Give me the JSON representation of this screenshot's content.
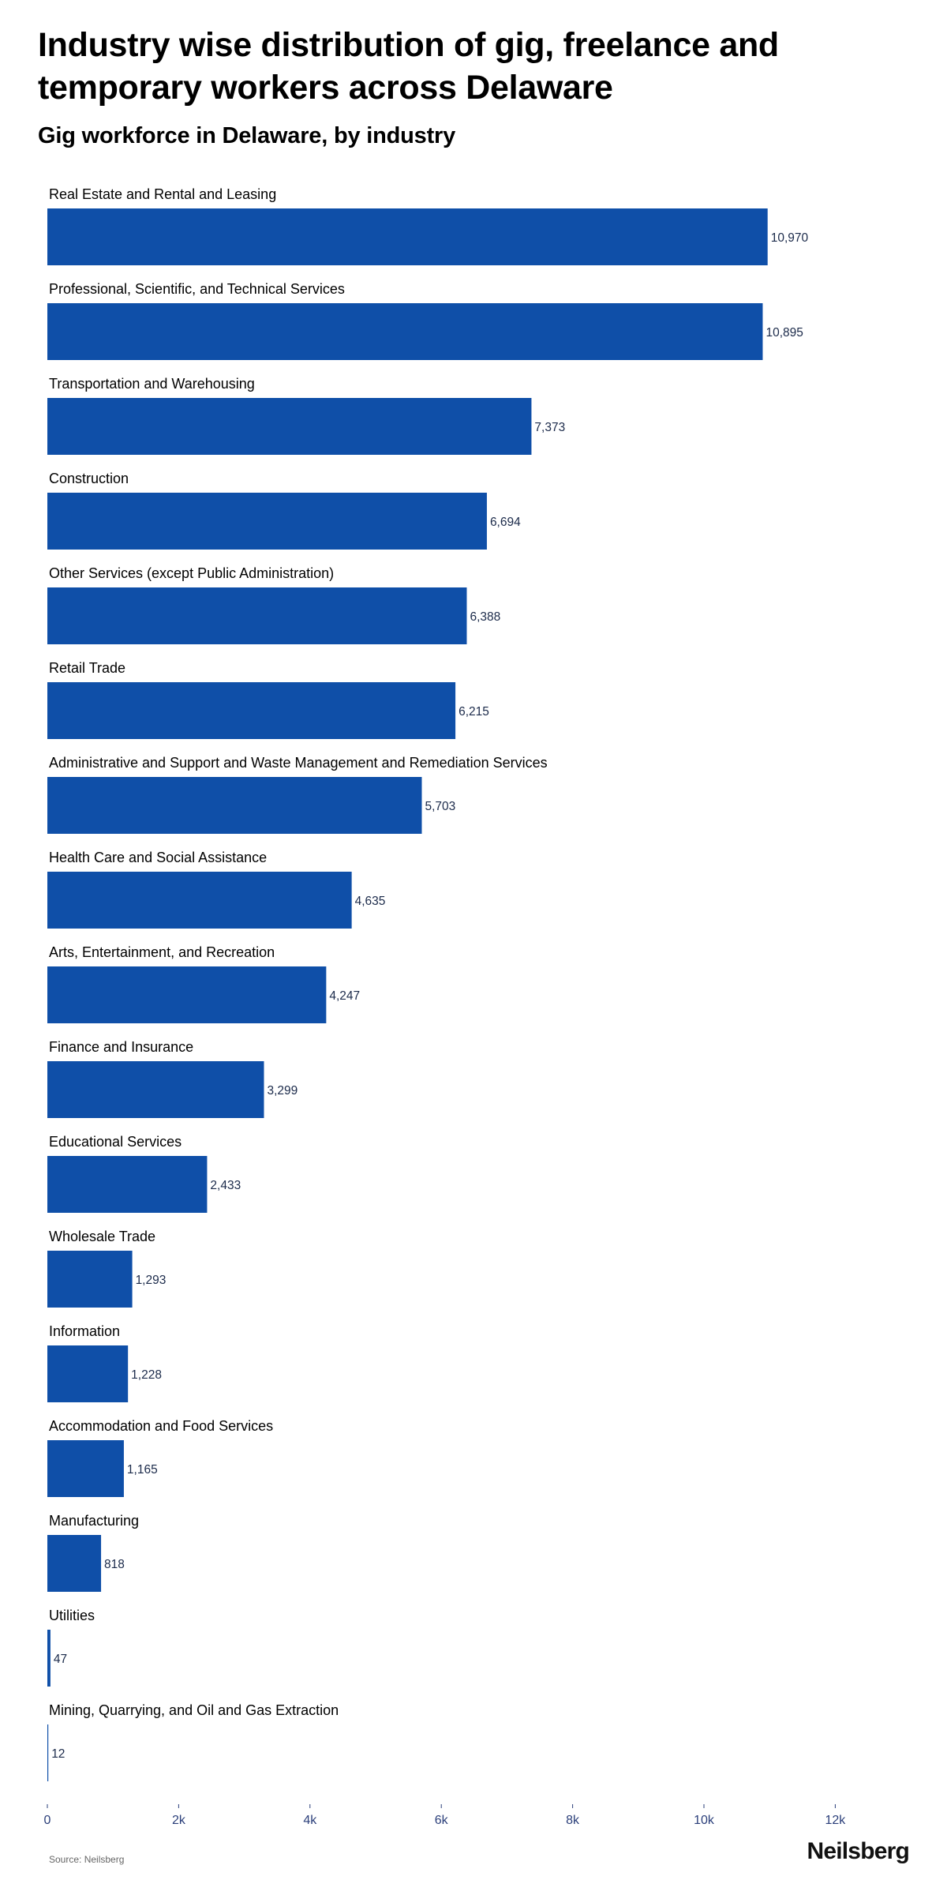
{
  "header": {
    "title": "Industry wise distribution of gig, freelance and temporary workers across Delaware",
    "subtitle": "Gig workforce in Delaware, by industry"
  },
  "footer": {
    "source": "Source: Neilsberg",
    "brand": "Neilsberg"
  },
  "colors": {
    "bar": "#0f4fa8",
    "value_label": "#1b2a4a",
    "category_label": "#000000",
    "axis_tick": "#2b3f7a"
  },
  "chart_data": {
    "type": "bar",
    "orientation": "horizontal",
    "title": "Gig workforce in Delaware, by industry",
    "categories": [
      "Real Estate and Rental and Leasing",
      "Professional, Scientific, and Technical Services",
      "Transportation and Warehousing",
      "Construction",
      "Other Services (except Public Administration)",
      "Retail Trade",
      "Administrative and Support and Waste Management and Remediation Services",
      "Health Care and Social Assistance",
      "Arts, Entertainment, and Recreation",
      "Finance and Insurance",
      "Educational Services",
      "Wholesale Trade",
      "Information",
      "Accommodation and Food Services",
      "Manufacturing",
      "Utilities",
      "Mining, Quarrying, and Oil and Gas Extraction"
    ],
    "values": [
      10970,
      10895,
      7373,
      6694,
      6388,
      6215,
      5703,
      4635,
      4247,
      3299,
      2433,
      1293,
      1228,
      1165,
      818,
      47,
      12
    ],
    "value_labels": [
      "10,970",
      "10,895",
      "7,373",
      "6,694",
      "6,388",
      "6,215",
      "5,703",
      "4,635",
      "4,247",
      "3,299",
      "2,433",
      "1,293",
      "1,228",
      "1,165",
      "818",
      "47",
      "12"
    ],
    "x_ticks": [
      0,
      2000,
      4000,
      6000,
      8000,
      10000,
      12000
    ],
    "x_tick_labels": [
      "0",
      "2k",
      "4k",
      "6k",
      "8k",
      "10k",
      "12k"
    ],
    "xlim": [
      0,
      13500
    ],
    "xlabel": "",
    "ylabel": "",
    "grid": false,
    "legend": "none"
  }
}
